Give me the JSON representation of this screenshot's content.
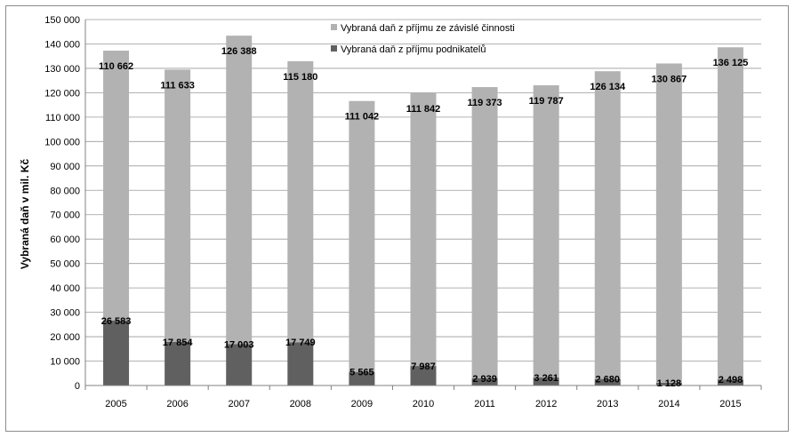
{
  "chart_data": {
    "type": "bar",
    "stacked": true,
    "categories": [
      "2005",
      "2006",
      "2007",
      "2008",
      "2009",
      "2010",
      "2011",
      "2012",
      "2013",
      "2014",
      "2015"
    ],
    "series": [
      {
        "name": "Vybraná daň z příjmu podnikatelů",
        "color": "#606060",
        "values": [
          26583,
          17854,
          17003,
          17749,
          5565,
          7987,
          2939,
          3261,
          2680,
          1128,
          2498
        ],
        "labels": [
          "26 583",
          "17 854",
          "17 003",
          "17 749",
          "5 565",
          "7 987",
          "2 939",
          "3 261",
          "2 680",
          "1 128",
          "2 498"
        ]
      },
      {
        "name": "Vybraná daň z příjmu ze závislé činnosti",
        "color": "#b2b2b2",
        "values": [
          110662,
          111633,
          126388,
          115180,
          111042,
          111842,
          119373,
          119787,
          126134,
          130867,
          136125
        ],
        "labels": [
          "110 662",
          "111 633",
          "126 388",
          "115 180",
          "111 042",
          "111 842",
          "119 373",
          "119 787",
          "126 134",
          "130 867",
          "136 125"
        ]
      }
    ],
    "ylabel": "Vybraná daň v mil. Kč",
    "ylim": [
      0,
      150000
    ],
    "ytick_labels": [
      "0",
      "10 000",
      "20 000",
      "30 000",
      "40 000",
      "50 000",
      "60 000",
      "70 000",
      "80 000",
      "90 000",
      "100 000",
      "110 000",
      "120 000",
      "130 000",
      "140 000",
      "150 000"
    ],
    "grid": true,
    "legend_position": "top-center",
    "legend": [
      "Vybraná daň z příjmu ze závislé činnosti",
      "Vybraná daň z příjmu podnikatelů"
    ]
  }
}
